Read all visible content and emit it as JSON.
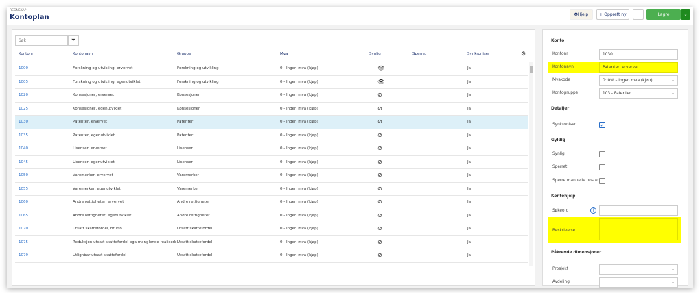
{
  "header": {
    "breadcrumb": "REGNSKAP",
    "title": "Kontoplan",
    "help": "Hjelp",
    "create": "+ Opprett ny",
    "more": "···",
    "save": "Lagre",
    "save_menu": "⌄"
  },
  "list": {
    "search_placeholder": "Søk",
    "columns": [
      "Kontonr",
      "Kontonavn",
      "Gruppe",
      "Mva",
      "Synlig",
      "Sperret",
      "Synkroniser"
    ],
    "rows": [
      {
        "nr": "1000",
        "navn": "Forskning og utvikling, ervervet",
        "gruppe": "Forskning og utvikling",
        "mva": "0 - Ingen mva (kjøp)",
        "synlig": "eye",
        "synk": "Ja"
      },
      {
        "nr": "1005",
        "navn": "Forskning og utvikling, egenutviklet",
        "gruppe": "Forskning og utvikling",
        "mva": "0 - Ingen mva (kjøp)",
        "synlig": "eye",
        "synk": "Ja"
      },
      {
        "nr": "1020",
        "navn": "Konsesjoner, ervervet",
        "gruppe": "Konsesjoner",
        "mva": "0 - Ingen mva (kjøp)",
        "synlig": "eye-slash",
        "synk": "Ja"
      },
      {
        "nr": "1025",
        "navn": "Konsesjoner, egenutviklet",
        "gruppe": "Konsesjoner",
        "mva": "0 - Ingen mva (kjøp)",
        "synlig": "eye-slash",
        "synk": "Ja"
      },
      {
        "nr": "1030",
        "navn": "Patenter, ervervet",
        "gruppe": "Patenter",
        "mva": "0 - Ingen mva (kjøp)",
        "synlig": "eye-slash",
        "synk": "Ja",
        "selected": true
      },
      {
        "nr": "1035",
        "navn": "Patenter, egenutviklet",
        "gruppe": "Patenter",
        "mva": "0 - Ingen mva (kjøp)",
        "synlig": "eye-slash",
        "synk": "Ja"
      },
      {
        "nr": "1040",
        "navn": "Lisenser, ervervet",
        "gruppe": "Lisenser",
        "mva": "0 - Ingen mva (kjøp)",
        "synlig": "eye-slash",
        "synk": "Ja"
      },
      {
        "nr": "1045",
        "navn": "Lisenser, egenutviklet",
        "gruppe": "Lisenser",
        "mva": "0 - Ingen mva (kjøp)",
        "synlig": "eye-slash",
        "synk": "Ja"
      },
      {
        "nr": "1050",
        "navn": "Varemerker, ervervet",
        "gruppe": "Varemerker",
        "mva": "0 - Ingen mva (kjøp)",
        "synlig": "eye-slash",
        "synk": "Ja"
      },
      {
        "nr": "1055",
        "navn": "Varemerker, egenutviklet",
        "gruppe": "Varemerker",
        "mva": "0 - Ingen mva (kjøp)",
        "synlig": "eye-slash",
        "synk": "Ja"
      },
      {
        "nr": "1060",
        "navn": "Andre rettigheter, ervervet",
        "gruppe": "Andre rettigheter",
        "mva": "0 - Ingen mva (kjøp)",
        "synlig": "eye-slash",
        "synk": "Ja"
      },
      {
        "nr": "1065",
        "navn": "Andre rettigheter, egenutviklet",
        "gruppe": "Andre rettigheter",
        "mva": "0 - Ingen mva (kjøp)",
        "synlig": "eye-slash",
        "synk": "Ja"
      },
      {
        "nr": "1070",
        "navn": "Utsatt skattefordel, brutto",
        "gruppe": "Utsatt skattefordel",
        "mva": "0 - Ingen mva (kjøp)",
        "synlig": "eye-slash",
        "synk": "Ja"
      },
      {
        "nr": "1075",
        "navn": "Reduksjon utsatt skattefordel pga manglende realiserb.",
        "gruppe": "Utsatt skattefordel",
        "mva": "0 - Ingen mva (kjøp)",
        "synlig": "eye-slash",
        "synk": "Ja"
      },
      {
        "nr": "1079",
        "navn": "Utlignbar utsatt skattefordel",
        "gruppe": "Utsatt skattefordel",
        "mva": "0 - Ingen mva (kjøp)",
        "synlig": "eye-slash",
        "synk": "Ja"
      }
    ]
  },
  "detail": {
    "konto": "Konto",
    "kontonr_label": "Kontonr",
    "kontonr": "1030",
    "kontonavn_label": "Kontonavn",
    "kontonavn": "Patenter, ervervet",
    "mvakode_label": "Mvakode",
    "mvakode": "0: 0% – Ingen mva (kjøp)",
    "kontogruppe_label": "Kontogruppe",
    "kontogruppe": "103 - Patenter",
    "detaljer": "Detaljer",
    "synk_label": "Synkroniser",
    "synk_checked": true,
    "gyldig": "Gyldig",
    "synlig_label": "Synlig",
    "sperret_label": "Sperret",
    "sperre_label": "Sperre manuelle poster",
    "kontohjelp": "Kontohjelp",
    "sokeord_label": "Søkeord",
    "beskrivelse_label": "Beskrivelse",
    "dimensjoner": "Påkrevde dimensjoner",
    "prosjekt_label": "Prosjekt",
    "avdeling_label": "Avdeling"
  },
  "colors": {
    "highlight": "#ffff00",
    "save": "#4caf50",
    "link": "#2a6fc9"
  }
}
